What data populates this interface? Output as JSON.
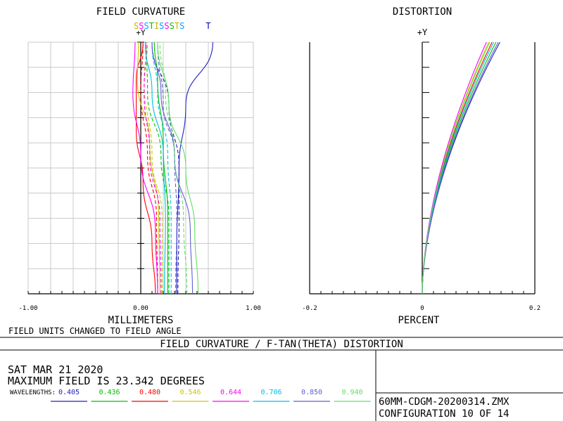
{
  "field_curvature": {
    "title": "FIELD CURVATURE",
    "axis_y_label": "+Y",
    "x_unit_label": "MILLIMETERS",
    "x_ticks": [
      "-1.00",
      "0.00",
      "1.00"
    ],
    "header_letters": [
      {
        "text": "S",
        "color": "#c8b400"
      },
      {
        "text": "S",
        "color": "#ff00ff"
      },
      {
        "text": "S",
        "color": "#00a0ff"
      },
      {
        "text": "T",
        "color": "#00c000"
      },
      {
        "text": "I",
        "color": "#c8b400"
      },
      {
        "text": "S",
        "color": "#00a0ff"
      },
      {
        "text": "S",
        "color": "#ff00ff"
      },
      {
        "text": "S",
        "color": "#00c000"
      },
      {
        "text": "T",
        "color": "#c8b400"
      },
      {
        "text": "S",
        "color": "#00a0ff"
      },
      {
        "text": "T",
        "color": "#0000c0"
      }
    ]
  },
  "distortion": {
    "title": "DISTORTION",
    "axis_y_label": "+Y",
    "x_unit_label": "PERCENT",
    "x_ticks": [
      "-0.2",
      "0",
      "0.2"
    ]
  },
  "note": "FIELD UNITS CHANGED TO FIELD ANGLE",
  "plot_title": "FIELD CURVATURE / F-TAN(THETA) DISTORTION",
  "date": "SAT MAR 21 2020",
  "max_field": "MAXIMUM FIELD IS 23.342 DEGREES",
  "wavelengths_label": "WAVELENGTHS:",
  "wavelengths": [
    {
      "value": "0.405",
      "color": "#2020c0"
    },
    {
      "value": "0.436",
      "color": "#00c000"
    },
    {
      "value": "0.480",
      "color": "#ff0000"
    },
    {
      "value": "0.546",
      "color": "#c8c800"
    },
    {
      "value": "0.644",
      "color": "#ff00ff"
    },
    {
      "value": "0.706",
      "color": "#00c0e0"
    },
    {
      "value": "0.850",
      "color": "#6060d0"
    },
    {
      "value": "0.940",
      "color": "#60e060"
    }
  ],
  "file_name": "60MM-CDGM-20200314.ZMX",
  "configuration": "CONFIGURATION 10 OF 14",
  "chart_data": [
    {
      "type": "line",
      "title": "FIELD CURVATURE",
      "xlabel": "MILLIMETERS",
      "ylabel": "+Y",
      "xlim": [
        -1.0,
        1.0
      ],
      "ylim": [
        0,
        1
      ],
      "grid": true,
      "series": [
        {
          "name": "0.405 S",
          "color": "#2020c0",
          "dash": false,
          "points": [
            [
              0.32,
              0
            ],
            [
              0.32,
              0.2
            ],
            [
              0.34,
              0.5
            ],
            [
              0.4,
              0.75
            ],
            [
              0.64,
              1
            ]
          ]
        },
        {
          "name": "0.405 T",
          "color": "#2020c0",
          "dash": true,
          "points": [
            [
              0.33,
              0
            ],
            [
              0.34,
              0.3
            ],
            [
              0.34,
              0.5
            ],
            [
              0.25,
              0.75
            ],
            [
              0.1,
              1
            ]
          ]
        },
        {
          "name": "0.436 S",
          "color": "#00c000",
          "dash": false,
          "points": [
            [
              0.24,
              0
            ],
            [
              0.24,
              0.3
            ],
            [
              0.2,
              0.6
            ],
            [
              0.15,
              0.85
            ],
            [
              0.12,
              1
            ]
          ]
        },
        {
          "name": "0.436 T",
          "color": "#00c000",
          "dash": true,
          "points": [
            [
              0.25,
              0
            ],
            [
              0.25,
              0.3
            ],
            [
              0.18,
              0.55
            ],
            [
              0.06,
              0.8
            ],
            [
              0.05,
              1
            ]
          ]
        },
        {
          "name": "0.480 S",
          "color": "#ff0000",
          "dash": false,
          "points": [
            [
              0.13,
              0
            ],
            [
              0.1,
              0.2
            ],
            [
              0.02,
              0.45
            ],
            [
              -0.04,
              0.65
            ],
            [
              -0.04,
              0.85
            ],
            [
              0.02,
              1
            ]
          ]
        },
        {
          "name": "0.480 T",
          "color": "#ff0000",
          "dash": true,
          "points": [
            [
              0.15,
              0
            ],
            [
              0.14,
              0.3
            ],
            [
              0.06,
              0.55
            ],
            [
              0.0,
              0.8
            ],
            [
              0.02,
              1
            ]
          ]
        },
        {
          "name": "0.546 S",
          "color": "#c8c800",
          "dash": false,
          "points": [
            [
              0.17,
              0
            ],
            [
              0.16,
              0.3
            ],
            [
              0.08,
              0.6
            ],
            [
              -0.03,
              0.85
            ],
            [
              -0.02,
              1
            ]
          ]
        },
        {
          "name": "0.546 T",
          "color": "#c8c800",
          "dash": true,
          "points": [
            [
              0.19,
              0
            ],
            [
              0.19,
              0.3
            ],
            [
              0.1,
              0.55
            ],
            [
              0.03,
              0.85
            ],
            [
              0.06,
              1
            ]
          ]
        },
        {
          "name": "0.644 S",
          "color": "#ff00ff",
          "dash": false,
          "points": [
            [
              0.15,
              0
            ],
            [
              0.13,
              0.25
            ],
            [
              0.0,
              0.55
            ],
            [
              -0.07,
              0.8
            ],
            [
              -0.05,
              1
            ]
          ]
        },
        {
          "name": "0.644 T",
          "color": "#ff00ff",
          "dash": true,
          "points": [
            [
              0.18,
              0
            ],
            [
              0.17,
              0.3
            ],
            [
              0.08,
              0.55
            ],
            [
              0.03,
              0.8
            ],
            [
              0.05,
              1
            ]
          ]
        },
        {
          "name": "0.706 S",
          "color": "#00c0e0",
          "dash": false,
          "points": [
            [
              0.21,
              0
            ],
            [
              0.22,
              0.3
            ],
            [
              0.2,
              0.55
            ],
            [
              0.1,
              0.8
            ],
            [
              0.04,
              1
            ]
          ]
        },
        {
          "name": "0.706 T",
          "color": "#00c0e0",
          "dash": true,
          "points": [
            [
              0.27,
              0
            ],
            [
              0.27,
              0.3
            ],
            [
              0.24,
              0.55
            ],
            [
              0.15,
              0.8
            ],
            [
              0.1,
              1
            ]
          ]
        },
        {
          "name": "0.850 S",
          "color": "#6060d0",
          "dash": false,
          "points": [
            [
              0.46,
              0
            ],
            [
              0.44,
              0.25
            ],
            [
              0.3,
              0.55
            ],
            [
              0.18,
              0.8
            ],
            [
              0.1,
              1
            ]
          ]
        },
        {
          "name": "0.850 T",
          "color": "#6060d0",
          "dash": true,
          "points": [
            [
              0.31,
              0
            ],
            [
              0.32,
              0.3
            ],
            [
              0.3,
              0.55
            ],
            [
              0.2,
              0.75
            ],
            [
              0.15,
              1
            ]
          ]
        },
        {
          "name": "0.940 S",
          "color": "#60e060",
          "dash": false,
          "points": [
            [
              0.51,
              0
            ],
            [
              0.48,
              0.25
            ],
            [
              0.4,
              0.5
            ],
            [
              0.25,
              0.75
            ],
            [
              0.15,
              1
            ]
          ]
        },
        {
          "name": "0.940 T",
          "color": "#60e060",
          "dash": true,
          "points": [
            [
              0.41,
              0
            ],
            [
              0.38,
              0.3
            ],
            [
              0.3,
              0.55
            ],
            [
              0.22,
              0.8
            ],
            [
              0.17,
              1
            ]
          ]
        }
      ]
    },
    {
      "type": "line",
      "title": "DISTORTION",
      "xlabel": "PERCENT",
      "ylabel": "+Y",
      "xlim": [
        -0.2,
        0.2
      ],
      "ylim": [
        0,
        1
      ],
      "grid": false,
      "series": [
        {
          "name": "0.405",
          "color": "#2020c0",
          "end": 0.138
        },
        {
          "name": "0.436",
          "color": "#00c000",
          "end": 0.131
        },
        {
          "name": "0.480",
          "color": "#ff0000",
          "end": 0.124
        },
        {
          "name": "0.546",
          "color": "#c8c800",
          "end": 0.118
        },
        {
          "name": "0.644",
          "color": "#ff00ff",
          "end": 0.114
        },
        {
          "name": "0.706",
          "color": "#00c0e0",
          "end": 0.127
        },
        {
          "name": "0.850",
          "color": "#6060d0",
          "end": 0.135
        },
        {
          "name": "0.940",
          "color": "#60e060",
          "end": 0.12
        }
      ]
    }
  ]
}
